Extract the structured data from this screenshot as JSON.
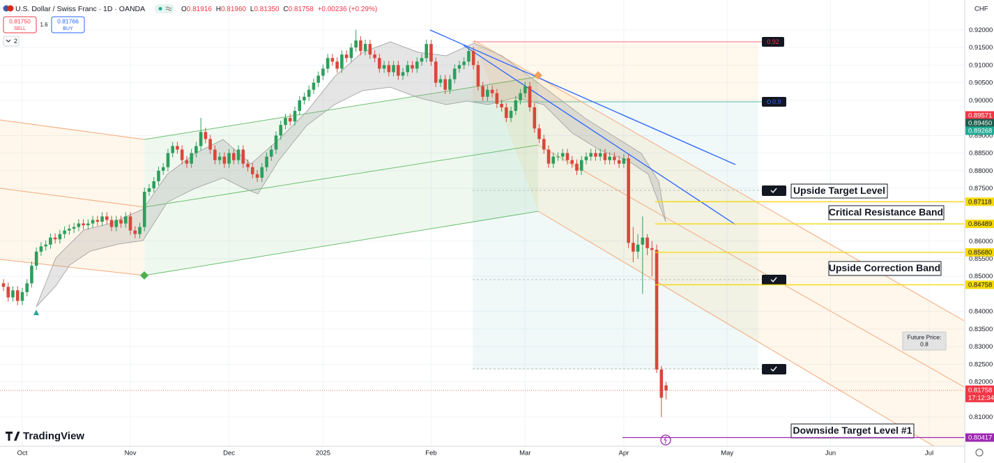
{
  "header": {
    "symbol": "U.S. Dollar / Swiss Franc · 1D · OANDA",
    "legend": [
      {
        "key": "O",
        "value": "0.81916"
      },
      {
        "key": "H",
        "value": "0.81960"
      },
      {
        "key": "L",
        "value": "0.81350"
      },
      {
        "key": "C",
        "value": "0.81758"
      }
    ],
    "change": "+0.00236 (+0.29%)",
    "sell": {
      "price": "0.81750",
      "label": "SELL"
    },
    "spread": "1.6",
    "buy": {
      "price": "0.81766",
      "label": "BUY"
    },
    "indicators": "2"
  },
  "branding": "TradingView",
  "chart_data": {
    "type": "candlestick",
    "currency": "CHF",
    "up_color": "#2e9e5b",
    "down_color": "#d9473b",
    "grid": true,
    "open": [
      0.848,
      0.847,
      0.844,
      0.846,
      0.843,
      0.8455,
      0.848,
      0.853,
      0.857,
      0.8585,
      0.859,
      0.861,
      0.8605,
      0.862,
      0.863,
      0.8635,
      0.864,
      0.865,
      0.8645,
      0.865,
      0.866,
      0.8655,
      0.867,
      0.866,
      0.864,
      0.866,
      0.865,
      0.867,
      0.863,
      0.862,
      0.864,
      0.874,
      0.875,
      0.877,
      0.88,
      0.881,
      0.885,
      0.887,
      0.886,
      0.883,
      0.882,
      0.885,
      0.887,
      0.891,
      0.889,
      0.886,
      0.883,
      0.884,
      0.882,
      0.885,
      0.883,
      0.886,
      0.882,
      0.881,
      0.879,
      0.878,
      0.881,
      0.884,
      0.886,
      0.89,
      0.893,
      0.895,
      0.894,
      0.897,
      0.9,
      0.901,
      0.903,
      0.905,
      0.907,
      0.909,
      0.912,
      0.911,
      0.909,
      0.913,
      0.912,
      0.915,
      0.917,
      0.914,
      0.916,
      0.913,
      0.912,
      0.909,
      0.91,
      0.908,
      0.91,
      0.907,
      0.908,
      0.91,
      0.909,
      0.911,
      0.912,
      0.916,
      0.911,
      0.905,
      0.906,
      0.903,
      0.906,
      0.909,
      0.91,
      0.911,
      0.914,
      0.91,
      0.904,
      0.901,
      0.903,
      0.902,
      0.899,
      0.898,
      0.895,
      0.897,
      0.9,
      0.902,
      0.904,
      0.898,
      0.892,
      0.889,
      0.886,
      0.882,
      0.884,
      0.884,
      0.885,
      0.883,
      0.882,
      0.88,
      0.883,
      0.884,
      0.885,
      0.884,
      0.885,
      0.883,
      0.884,
      0.883,
      0.882,
      0.8835,
      0.8595,
      0.857,
      0.859,
      0.861,
      0.858,
      0.8575,
      0.8235,
      0.819
    ],
    "high": [
      0.8492,
      0.8482,
      0.8472,
      0.8472,
      0.8467,
      0.8492,
      0.8542,
      0.8582,
      0.8597,
      0.8602,
      0.8622,
      0.8622,
      0.8632,
      0.8642,
      0.8647,
      0.8652,
      0.8662,
      0.8662,
      0.8662,
      0.8672,
      0.8672,
      0.8682,
      0.8682,
      0.8672,
      0.8672,
      0.8672,
      0.8682,
      0.8682,
      0.8642,
      0.8652,
      0.8752,
      0.8762,
      0.8782,
      0.8812,
      0.8822,
      0.8862,
      0.8882,
      0.8882,
      0.8872,
      0.8842,
      0.8862,
      0.8882,
      0.895,
      0.8922,
      0.8902,
      0.8872,
      0.8852,
      0.8852,
      0.8862,
      0.8862,
      0.8872,
      0.8872,
      0.8832,
      0.8822,
      0.8802,
      0.8822,
      0.8852,
      0.8872,
      0.8912,
      0.8942,
      0.8962,
      0.8962,
      0.8982,
      0.9012,
      0.9022,
      0.9042,
      0.9062,
      0.9082,
      0.9102,
      0.9132,
      0.9132,
      0.9122,
      0.9142,
      0.9142,
      0.9162,
      0.92,
      0.9182,
      0.9172,
      0.9172,
      0.9142,
      0.9132,
      0.9112,
      0.9112,
      0.9112,
      0.9112,
      0.9092,
      0.9112,
      0.9112,
      0.9122,
      0.9132,
      0.9172,
      0.9172,
      0.9122,
      0.9072,
      0.9072,
      0.9072,
      0.9102,
      0.9112,
      0.9122,
      0.9152,
      0.9152,
      0.9112,
      0.9052,
      0.9042,
      0.9042,
      0.9032,
      0.9002,
      0.8992,
      0.8982,
      0.9012,
      0.9032,
      0.9052,
      0.9052,
      0.8992,
      0.8932,
      0.8902,
      0.8872,
      0.8852,
      0.8852,
      0.8862,
      0.8862,
      0.8842,
      0.8832,
      0.8842,
      0.8852,
      0.8862,
      0.8862,
      0.8862,
      0.8862,
      0.8852,
      0.8852,
      0.8842,
      0.8847,
      0.8847,
      0.864,
      0.862,
      0.867,
      0.862,
      0.86,
      0.859,
      0.8245,
      0.82
    ],
    "low": [
      0.8458,
      0.8428,
      0.8428,
      0.8418,
      0.8418,
      0.8443,
      0.8468,
      0.8518,
      0.8558,
      0.8573,
      0.8578,
      0.8593,
      0.8593,
      0.8608,
      0.8618,
      0.8623,
      0.8628,
      0.8633,
      0.8633,
      0.8638,
      0.8643,
      0.8643,
      0.8648,
      0.8628,
      0.8628,
      0.8638,
      0.8638,
      0.8618,
      0.8608,
      0.8608,
      0.8628,
      0.8728,
      0.8738,
      0.8758,
      0.8788,
      0.8798,
      0.8838,
      0.8848,
      0.8818,
      0.8808,
      0.8808,
      0.8838,
      0.8858,
      0.8878,
      0.8848,
      0.8818,
      0.8818,
      0.8808,
      0.8808,
      0.8818,
      0.8818,
      0.8808,
      0.8798,
      0.8778,
      0.8768,
      0.8768,
      0.8798,
      0.8828,
      0.8848,
      0.8888,
      0.8918,
      0.8928,
      0.8928,
      0.8958,
      0.8988,
      0.8998,
      0.9018,
      0.9038,
      0.9058,
      0.9078,
      0.9098,
      0.9078,
      0.9078,
      0.9108,
      0.9108,
      0.9138,
      0.9128,
      0.9128,
      0.9118,
      0.9108,
      0.9078,
      0.9078,
      0.9068,
      0.9068,
      0.9058,
      0.9058,
      0.9068,
      0.9078,
      0.9078,
      0.9098,
      0.9108,
      0.9098,
      0.9038,
      0.9038,
      0.9018,
      0.9018,
      0.9048,
      0.9078,
      0.9088,
      0.9098,
      0.9088,
      0.9028,
      0.8998,
      0.8998,
      0.9008,
      0.8978,
      0.8968,
      0.8938,
      0.8938,
      0.8958,
      0.8988,
      0.9008,
      0.8968,
      0.8908,
      0.8878,
      0.8848,
      0.8808,
      0.8808,
      0.8828,
      0.8828,
      0.8818,
      0.8808,
      0.8788,
      0.8788,
      0.8818,
      0.8828,
      0.8828,
      0.8828,
      0.8818,
      0.8818,
      0.8818,
      0.8808,
      0.8808,
      0.858,
      0.854,
      0.855,
      0.845,
      0.856,
      0.85,
      0.8225,
      0.81,
      0.815
    ],
    "close": [
      0.847,
      0.844,
      0.846,
      0.843,
      0.8455,
      0.848,
      0.853,
      0.857,
      0.8585,
      0.859,
      0.861,
      0.8605,
      0.862,
      0.863,
      0.8635,
      0.864,
      0.865,
      0.8645,
      0.865,
      0.866,
      0.8655,
      0.867,
      0.866,
      0.864,
      0.866,
      0.865,
      0.867,
      0.863,
      0.862,
      0.864,
      0.874,
      0.875,
      0.877,
      0.88,
      0.881,
      0.885,
      0.887,
      0.886,
      0.883,
      0.882,
      0.885,
      0.887,
      0.891,
      0.889,
      0.886,
      0.883,
      0.884,
      0.882,
      0.885,
      0.883,
      0.886,
      0.882,
      0.881,
      0.879,
      0.878,
      0.881,
      0.884,
      0.886,
      0.89,
      0.893,
      0.895,
      0.894,
      0.897,
      0.9,
      0.901,
      0.903,
      0.905,
      0.907,
      0.909,
      0.912,
      0.911,
      0.909,
      0.913,
      0.912,
      0.915,
      0.917,
      0.914,
      0.916,
      0.913,
      0.912,
      0.909,
      0.91,
      0.908,
      0.91,
      0.907,
      0.908,
      0.91,
      0.909,
      0.911,
      0.912,
      0.916,
      0.911,
      0.905,
      0.906,
      0.903,
      0.906,
      0.909,
      0.91,
      0.911,
      0.914,
      0.91,
      0.904,
      0.901,
      0.903,
      0.902,
      0.899,
      0.898,
      0.895,
      0.897,
      0.9,
      0.902,
      0.904,
      0.898,
      0.892,
      0.889,
      0.886,
      0.882,
      0.884,
      0.884,
      0.885,
      0.883,
      0.882,
      0.88,
      0.883,
      0.884,
      0.885,
      0.884,
      0.885,
      0.883,
      0.884,
      0.883,
      0.882,
      0.8835,
      0.8595,
      0.857,
      0.859,
      0.861,
      0.858,
      0.8575,
      0.8235,
      0.8155,
      0.8176
    ],
    "xlim": [
      -0.74,
      204.4
    ],
    "xticks": [
      {
        "value": 4,
        "label": "Oct"
      },
      {
        "value": 27,
        "label": "Nov"
      },
      {
        "value": 48,
        "label": "Dec"
      },
      {
        "value": 68,
        "label": "2025"
      },
      {
        "value": 91,
        "label": "Feb"
      },
      {
        "value": 111,
        "label": "Mar"
      },
      {
        "value": 132,
        "label": "Apr"
      },
      {
        "value": 154,
        "label": "May"
      },
      {
        "value": 176,
        "label": "Jun"
      },
      {
        "value": 197,
        "label": "Jul"
      }
    ],
    "ylim": [
      0.8017,
      0.9285
    ],
    "yticks": [
      {
        "value": 0.92,
        "label": "0.92000"
      },
      {
        "value": 0.915,
        "label": "0.91500"
      },
      {
        "value": 0.91,
        "label": "0.91000"
      },
      {
        "value": 0.905,
        "label": "0.90500"
      },
      {
        "value": 0.9,
        "label": "0.90000"
      },
      {
        "value": 0.89,
        "label": "0.89000"
      },
      {
        "value": 0.885,
        "label": "0.88500"
      },
      {
        "value": 0.88,
        "label": "0.88000"
      },
      {
        "value": 0.875,
        "label": "0.87500"
      },
      {
        "value": 0.86,
        "label": "0.86000"
      },
      {
        "value": 0.855,
        "label": "0.85500"
      },
      {
        "value": 0.85,
        "label": "0.85000"
      },
      {
        "value": 0.84,
        "label": "0.84000"
      },
      {
        "value": 0.835,
        "label": "0.83500"
      },
      {
        "value": 0.83,
        "label": "0.83000"
      },
      {
        "value": 0.825,
        "label": "0.82500"
      },
      {
        "value": 0.82,
        "label": "0.82000"
      },
      {
        "value": 0.81,
        "label": "0.81000"
      }
    ],
    "price_labels": [
      {
        "value": 0.89571,
        "label": "0.89571",
        "color": "#f23645"
      },
      {
        "value": 0.8945,
        "label": "0.89450",
        "color": "#1c5b4b"
      },
      {
        "value": 0.89268,
        "label": "0.89268",
        "color": "#22ab94"
      }
    ],
    "level_color": "#f5d90a",
    "levels": [
      {
        "value": 0.87118,
        "label": "0.87118"
      },
      {
        "value": 0.86489,
        "label": "0.86489"
      },
      {
        "value": 0.8568,
        "label": "0.85680"
      },
      {
        "value": 0.84758,
        "label": "0.84758"
      }
    ],
    "downside_level": {
      "value": 0.80417,
      "label": "0.80417",
      "color": "#9c27b0"
    },
    "current_price": {
      "value": 0.81758,
      "label": "0.81758",
      "time": "17:12:34",
      "color": "#f23645"
    },
    "targets": [
      {
        "value": 0.92,
        "color": "#f23645"
      },
      {
        "value": 0.9,
        "color": "#2962ff"
      }
    ],
    "annotations": [
      "Upside Target Level",
      "Critical Resistance Band",
      "Upside Correction Band",
      "Downside Target Level #1"
    ],
    "future_price": {
      "label": "Future Price:",
      "value": 0.8
    }
  }
}
